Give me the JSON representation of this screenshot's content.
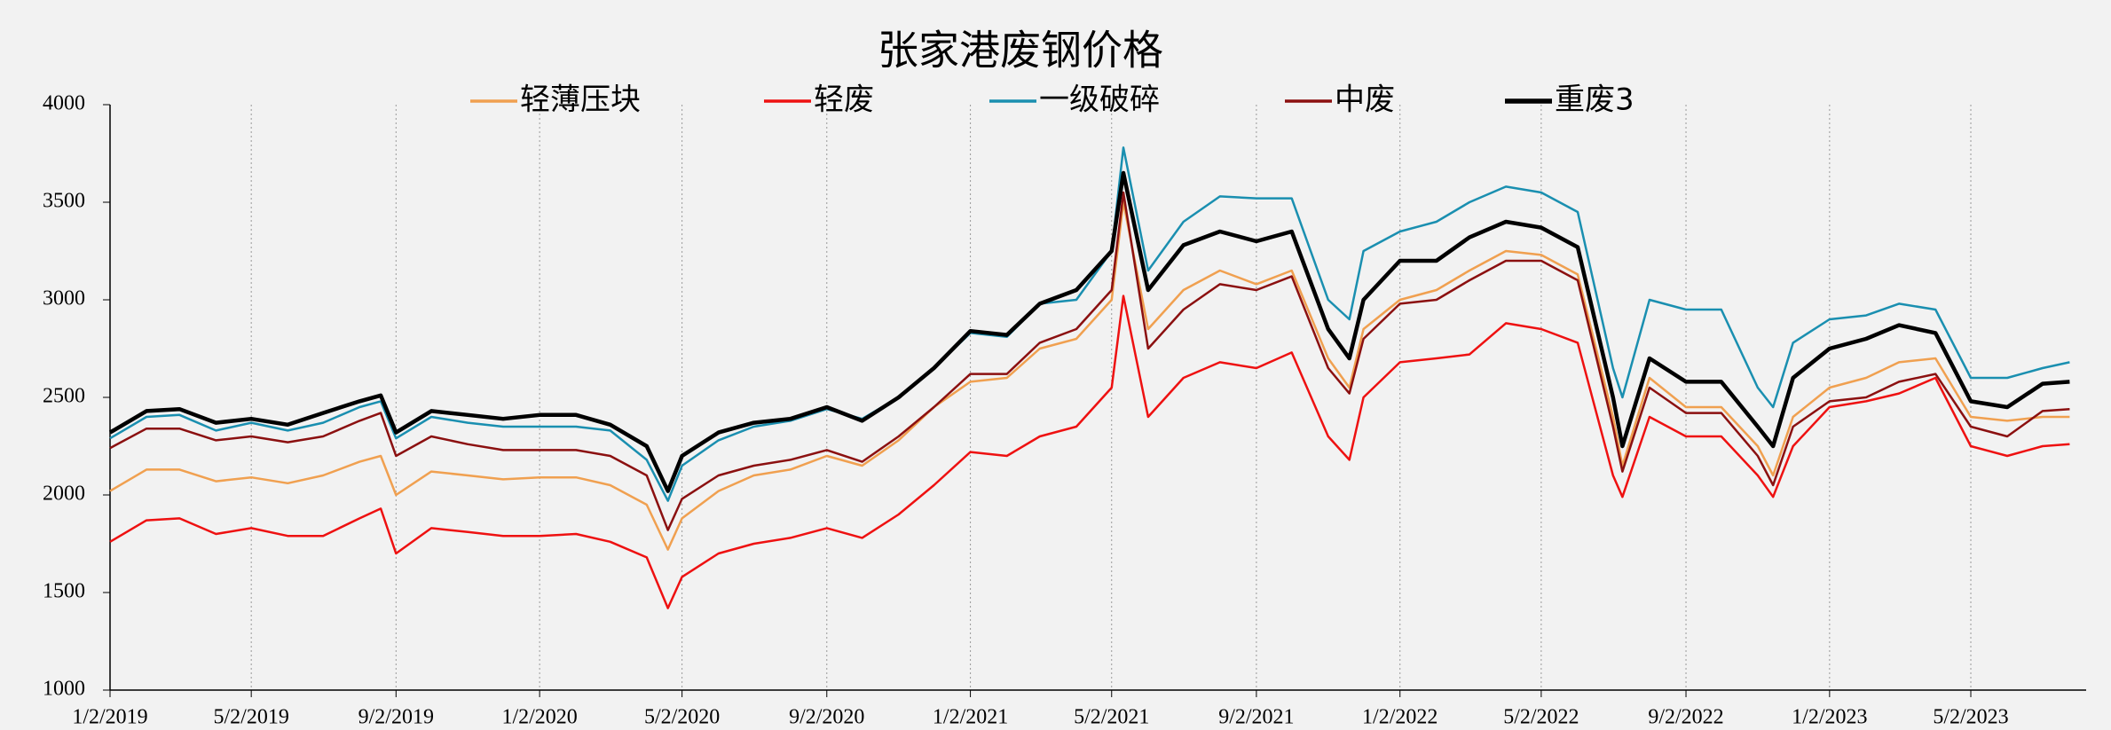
{
  "chart_data": {
    "type": "line",
    "title": "张家港废钢价格",
    "x": [
      "1/2/2019",
      "2/2/2019",
      "3/2/2019",
      "4/2/2019",
      "5/2/2019",
      "6/2/2019",
      "7/2/2019",
      "8/2/2019",
      "8/20/2019",
      "9/2/2019",
      "10/2/2019",
      "11/2/2019",
      "12/2/2019",
      "1/2/2020",
      "2/2/2020",
      "3/2/2020",
      "4/2/2020",
      "4/20/2020",
      "5/2/2020",
      "6/2/2020",
      "7/2/2020",
      "8/2/2020",
      "9/2/2020",
      "10/2/2020",
      "11/2/2020",
      "12/2/2020",
      "1/2/2021",
      "2/2/2021",
      "3/2/2021",
      "4/2/2021",
      "5/2/2021",
      "5/12/2021",
      "6/2/2021",
      "7/2/2021",
      "8/2/2021",
      "9/2/2021",
      "10/2/2021",
      "11/2/2021",
      "11/20/2021",
      "12/2/2021",
      "1/2/2022",
      "2/2/2022",
      "3/2/2022",
      "4/2/2022",
      "5/2/2022",
      "6/2/2022",
      "7/2/2022",
      "7/10/2022",
      "8/2/2022",
      "9/2/2022",
      "10/2/2022",
      "11/2/2022",
      "11/15/2022",
      "12/2/2022",
      "1/2/2023",
      "2/2/2023",
      "3/2/2023",
      "4/2/2023",
      "5/2/2023",
      "6/2/2023",
      "7/2/2023",
      "7/25/2023"
    ],
    "series": [
      {
        "name": "轻薄压块",
        "color": "#f0a050",
        "width": 2.5,
        "values": [
          2020,
          2130,
          2130,
          2070,
          2090,
          2060,
          2100,
          2170,
          2200,
          2000,
          2120,
          2100,
          2080,
          2090,
          2090,
          2050,
          1950,
          1720,
          1880,
          2020,
          2100,
          2130,
          2200,
          2150,
          2280,
          2450,
          2580,
          2600,
          2750,
          2800,
          3000,
          3500,
          2850,
          3050,
          3150,
          3080,
          3150,
          2700,
          2550,
          2850,
          3000,
          3050,
          3150,
          3250,
          3230,
          3130,
          2400,
          2150,
          2600,
          2450,
          2450,
          2250,
          2100,
          2400,
          2550,
          2600,
          2680,
          2700,
          2400,
          2380,
          2400,
          2400
        ]
      },
      {
        "name": "轻废",
        "color": "#ee1111",
        "width": 2.5,
        "values": [
          1760,
          1870,
          1880,
          1800,
          1830,
          1790,
          1790,
          1880,
          1930,
          1700,
          1830,
          1810,
          1790,
          1790,
          1800,
          1760,
          1680,
          1420,
          1580,
          1700,
          1750,
          1780,
          1830,
          1780,
          1900,
          2050,
          2220,
          2200,
          2300,
          2350,
          2550,
          3020,
          2400,
          2600,
          2680,
          2650,
          2730,
          2300,
          2180,
          2500,
          2680,
          2700,
          2720,
          2880,
          2850,
          2780,
          2100,
          1990,
          2400,
          2300,
          2300,
          2100,
          1990,
          2250,
          2450,
          2480,
          2520,
          2600,
          2250,
          2200,
          2250,
          2260
        ]
      },
      {
        "name": "一级破碎",
        "color": "#1a8fb0",
        "width": 2.5,
        "values": [
          2290,
          2400,
          2410,
          2330,
          2370,
          2330,
          2370,
          2450,
          2480,
          2290,
          2400,
          2370,
          2350,
          2350,
          2350,
          2330,
          2180,
          1970,
          2150,
          2280,
          2350,
          2380,
          2440,
          2390,
          2500,
          2650,
          2830,
          2810,
          2980,
          3000,
          3250,
          3780,
          3150,
          3400,
          3530,
          3520,
          3520,
          3000,
          2900,
          3250,
          3350,
          3400,
          3500,
          3580,
          3550,
          3450,
          2650,
          2500,
          3000,
          2950,
          2950,
          2550,
          2450,
          2780,
          2900,
          2920,
          2980,
          2950,
          2600,
          2600,
          2650,
          2680
        ]
      },
      {
        "name": "中废",
        "color": "#8b1010",
        "width": 2.5,
        "values": [
          2240,
          2340,
          2340,
          2280,
          2300,
          2270,
          2300,
          2380,
          2420,
          2200,
          2300,
          2260,
          2230,
          2230,
          2230,
          2200,
          2100,
          1820,
          1980,
          2100,
          2150,
          2180,
          2230,
          2170,
          2300,
          2450,
          2620,
          2620,
          2780,
          2850,
          3050,
          3550,
          2750,
          2950,
          3080,
          3050,
          3120,
          2650,
          2520,
          2800,
          2980,
          3000,
          3100,
          3200,
          3200,
          3100,
          2350,
          2120,
          2550,
          2420,
          2420,
          2200,
          2050,
          2350,
          2480,
          2500,
          2580,
          2620,
          2350,
          2300,
          2430,
          2440
        ]
      },
      {
        "name": "重废3",
        "color": "#000000",
        "width": 4.5,
        "values": [
          2320,
          2430,
          2440,
          2370,
          2390,
          2360,
          2420,
          2480,
          2510,
          2320,
          2430,
          2410,
          2390,
          2410,
          2410,
          2360,
          2250,
          2020,
          2200,
          2320,
          2370,
          2390,
          2450,
          2380,
          2500,
          2650,
          2840,
          2820,
          2980,
          3050,
          3250,
          3650,
          3050,
          3280,
          3350,
          3300,
          3350,
          2850,
          2700,
          3000,
          3200,
          3200,
          3320,
          3400,
          3370,
          3270,
          2500,
          2250,
          2700,
          2580,
          2580,
          2350,
          2250,
          2600,
          2750,
          2800,
          2870,
          2830,
          2480,
          2450,
          2570,
          2580
        ]
      }
    ],
    "xlim": [
      "1/2/2019",
      "8/8/2023"
    ],
    "xticks": [
      "1/2/2019",
      "5/2/2019",
      "9/2/2019",
      "1/2/2020",
      "5/2/2020",
      "9/2/2020",
      "1/2/2021",
      "5/2/2021",
      "9/2/2021",
      "1/2/2022",
      "5/2/2022",
      "9/2/2022",
      "1/2/2023",
      "5/2/2023"
    ],
    "ylim": [
      1000,
      4000
    ],
    "yticks": [
      1000,
      1500,
      2000,
      2500,
      3000,
      3500,
      4000
    ],
    "grid": "x",
    "legend": "top"
  }
}
